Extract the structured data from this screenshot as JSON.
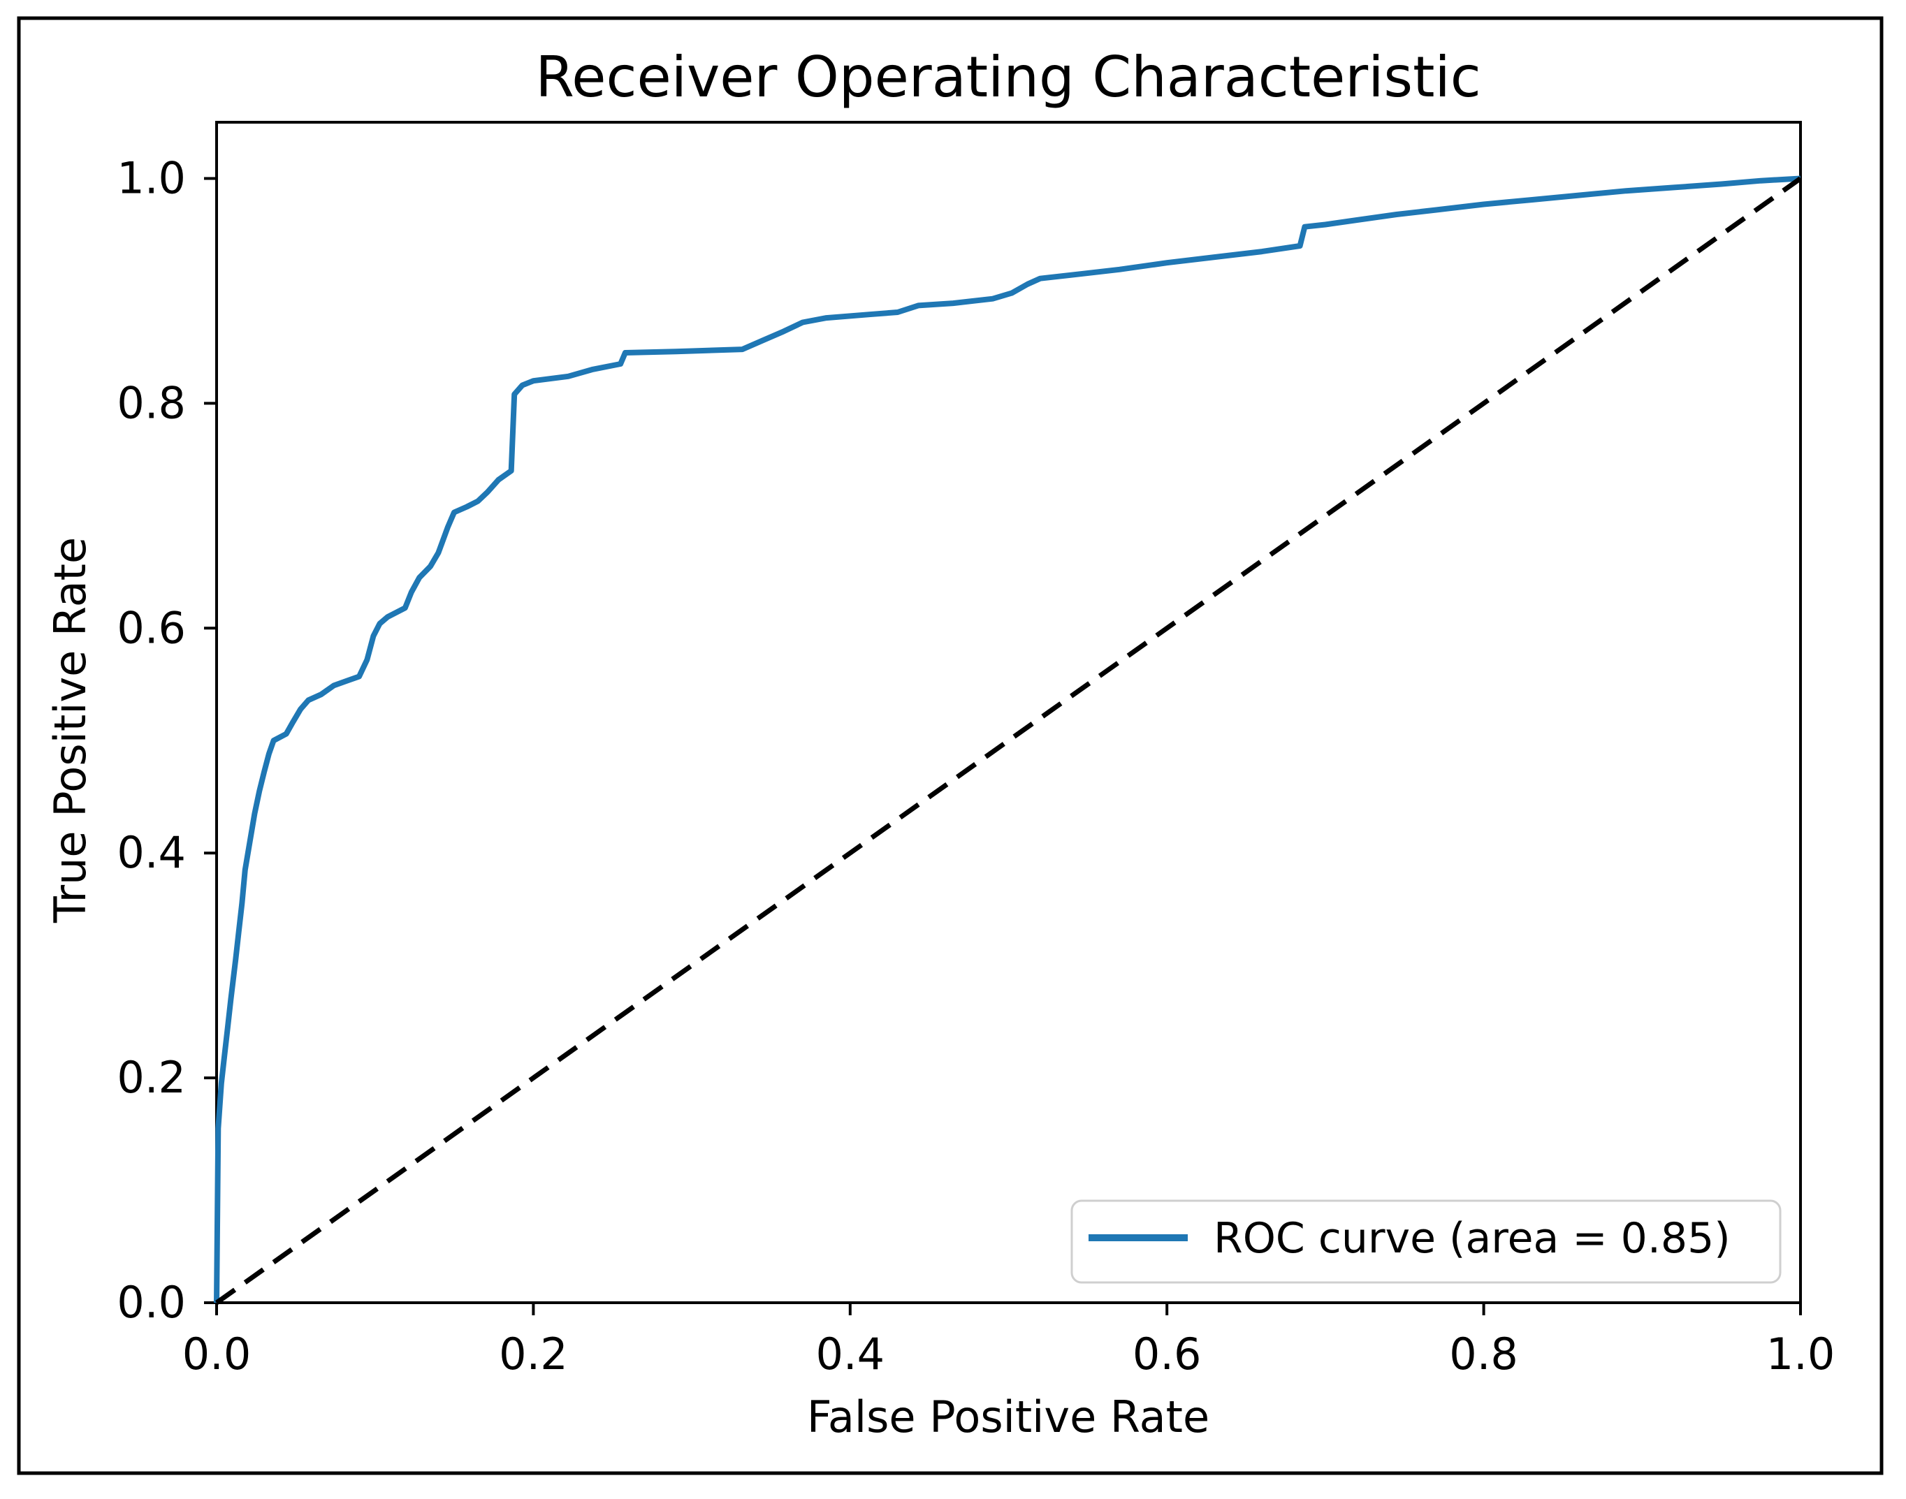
{
  "figure": {
    "background": "#ffffff",
    "border_color": "#000000",
    "spine_color": "#000000",
    "text_color": "#000000",
    "legend_edge_color": "#cfcfcf",
    "legend_face_color": "#ffffff"
  },
  "chart_data": {
    "type": "line",
    "title": "Receiver Operating Characteristic",
    "xlabel": "False Positive Rate",
    "ylabel": "True Positive Rate",
    "xlim": [
      0.0,
      1.0
    ],
    "ylim": [
      0.0,
      1.05
    ],
    "x_ticks": [
      0.0,
      0.2,
      0.4,
      0.6,
      0.8,
      1.0
    ],
    "y_ticks": [
      0.0,
      0.2,
      0.4,
      0.6,
      0.8,
      1.0
    ],
    "tick_decimals": 1,
    "grid": false,
    "auc": 0.85,
    "legend": {
      "position": "lower right",
      "entries": [
        {
          "label": "ROC curve (area = 0.85)",
          "color": "#1f77b4",
          "style": "solid"
        }
      ]
    },
    "series": [
      {
        "name": "ROC curve (area = 0.85)",
        "color": "#1f77b4",
        "style": "solid",
        "linewidth": 8,
        "points": [
          [
            0.0,
            0.0
          ],
          [
            0.001,
            0.155
          ],
          [
            0.003,
            0.195
          ],
          [
            0.005,
            0.22
          ],
          [
            0.007,
            0.245
          ],
          [
            0.009,
            0.27
          ],
          [
            0.012,
            0.305
          ],
          [
            0.014,
            0.33
          ],
          [
            0.016,
            0.355
          ],
          [
            0.018,
            0.385
          ],
          [
            0.021,
            0.41
          ],
          [
            0.024,
            0.435
          ],
          [
            0.027,
            0.455
          ],
          [
            0.03,
            0.472
          ],
          [
            0.033,
            0.488
          ],
          [
            0.036,
            0.5
          ],
          [
            0.044,
            0.506
          ],
          [
            0.048,
            0.516
          ],
          [
            0.053,
            0.528
          ],
          [
            0.058,
            0.536
          ],
          [
            0.066,
            0.541
          ],
          [
            0.074,
            0.549
          ],
          [
            0.082,
            0.553
          ],
          [
            0.09,
            0.557
          ],
          [
            0.095,
            0.572
          ],
          [
            0.099,
            0.593
          ],
          [
            0.103,
            0.604
          ],
          [
            0.108,
            0.61
          ],
          [
            0.119,
            0.618
          ],
          [
            0.123,
            0.632
          ],
          [
            0.128,
            0.645
          ],
          [
            0.135,
            0.655
          ],
          [
            0.14,
            0.667
          ],
          [
            0.146,
            0.69
          ],
          [
            0.15,
            0.703
          ],
          [
            0.158,
            0.708
          ],
          [
            0.165,
            0.713
          ],
          [
            0.171,
            0.721
          ],
          [
            0.178,
            0.732
          ],
          [
            0.186,
            0.74
          ],
          [
            0.188,
            0.808
          ],
          [
            0.193,
            0.816
          ],
          [
            0.2,
            0.82
          ],
          [
            0.222,
            0.824
          ],
          [
            0.237,
            0.83
          ],
          [
            0.255,
            0.835
          ],
          [
            0.258,
            0.845
          ],
          [
            0.29,
            0.846
          ],
          [
            0.332,
            0.848
          ],
          [
            0.345,
            0.856
          ],
          [
            0.358,
            0.864
          ],
          [
            0.37,
            0.872
          ],
          [
            0.385,
            0.876
          ],
          [
            0.412,
            0.879
          ],
          [
            0.43,
            0.881
          ],
          [
            0.443,
            0.887
          ],
          [
            0.465,
            0.889
          ],
          [
            0.49,
            0.893
          ],
          [
            0.502,
            0.898
          ],
          [
            0.512,
            0.906
          ],
          [
            0.52,
            0.911
          ],
          [
            0.545,
            0.915
          ],
          [
            0.57,
            0.919
          ],
          [
            0.6,
            0.925
          ],
          [
            0.63,
            0.93
          ],
          [
            0.66,
            0.935
          ],
          [
            0.684,
            0.94
          ],
          [
            0.687,
            0.957
          ],
          [
            0.7,
            0.959
          ],
          [
            0.72,
            0.963
          ],
          [
            0.745,
            0.968
          ],
          [
            0.77,
            0.972
          ],
          [
            0.8,
            0.977
          ],
          [
            0.83,
            0.981
          ],
          [
            0.86,
            0.985
          ],
          [
            0.89,
            0.989
          ],
          [
            0.92,
            0.992
          ],
          [
            0.95,
            0.995
          ],
          [
            0.975,
            0.998
          ],
          [
            1.0,
            1.0
          ]
        ]
      },
      {
        "name": "chance diagonal",
        "color": "#000000",
        "style": "dashed",
        "linewidth": 7,
        "points": [
          [
            0.0,
            0.0
          ],
          [
            1.0,
            1.0
          ]
        ]
      }
    ]
  }
}
